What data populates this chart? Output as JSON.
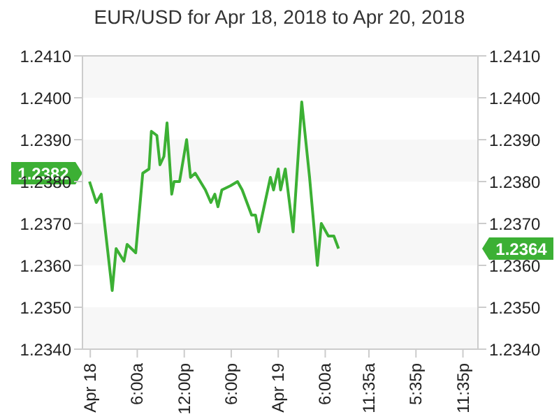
{
  "chart_data": {
    "type": "line",
    "title": "EUR/USD for Apr 18, 2018 to Apr 20, 2018",
    "x": [
      "2018-04-17T23:54",
      "2018-04-18T00:46",
      "2018-04-18T01:24",
      "2018-04-18T02:48",
      "2018-04-18T03:18",
      "2018-04-18T04:18",
      "2018-04-18T04:42",
      "2018-04-18T05:48",
      "2018-04-18T06:42",
      "2018-04-18T07:30",
      "2018-04-18T07:48",
      "2018-04-18T08:30",
      "2018-04-18T08:54",
      "2018-04-18T09:24",
      "2018-04-18T09:48",
      "2018-04-18T10:24",
      "2018-04-18T10:42",
      "2018-04-18T11:24",
      "2018-04-18T12:18",
      "2018-04-18T12:48",
      "2018-04-18T13:24",
      "2018-04-18T14:42",
      "2018-04-18T15:24",
      "2018-04-18T15:54",
      "2018-04-18T16:18",
      "2018-04-18T16:48",
      "2018-04-18T17:54",
      "2018-04-18T18:48",
      "2018-04-18T19:24",
      "2018-04-18T20:36",
      "2018-04-18T21:06",
      "2018-04-18T21:30",
      "2018-04-18T23:00",
      "2018-04-18T23:24",
      "2018-04-19T00:00",
      "2018-04-19T00:18",
      "2018-04-19T00:54",
      "2018-04-19T01:54",
      "2018-04-19T03:00",
      "2018-04-19T04:00",
      "2018-04-19T05:00",
      "2018-04-19T05:30",
      "2018-04-19T06:24",
      "2018-04-19T07:06",
      "2018-04-19T07:42"
    ],
    "series": [
      {
        "color": "#3cb034",
        "values": [
          1.238,
          1.2375,
          1.2377,
          1.2354,
          1.2364,
          1.2361,
          1.2365,
          1.2363,
          1.2382,
          1.2383,
          1.2392,
          1.2391,
          1.2384,
          1.2386,
          1.2394,
          1.2377,
          1.238,
          1.238,
          1.239,
          1.2381,
          1.2382,
          1.2378,
          1.2375,
          1.2377,
          1.2374,
          1.2378,
          1.2379,
          1.238,
          1.2378,
          1.2372,
          1.2372,
          1.2368,
          1.2381,
          1.2378,
          1.2383,
          1.2378,
          1.2383,
          1.2368,
          1.2399,
          1.2381,
          1.236,
          1.237,
          1.2367,
          1.2367,
          1.2364
        ]
      }
    ],
    "xlim": [
      "2018-04-17T23:00",
      "2018-04-20T01:30"
    ],
    "xticks": [
      {
        "value": "2018-04-18T00:00",
        "label": "Apr 18"
      },
      {
        "value": "2018-04-18T06:00",
        "label": "6:00a"
      },
      {
        "value": "2018-04-18T12:00",
        "label": "12:00p"
      },
      {
        "value": "2018-04-18T18:00",
        "label": "6:00p"
      },
      {
        "value": "2018-04-19T00:00",
        "label": "Apr 19"
      },
      {
        "value": "2018-04-19T06:00",
        "label": "6:00a"
      },
      {
        "value": "2018-04-19T11:35",
        "label": "11:35a"
      },
      {
        "value": "2018-04-19T17:35",
        "label": "5:35p"
      },
      {
        "value": "2018-04-19T23:35",
        "label": "11:35p"
      }
    ],
    "ylim": [
      1.234,
      1.241
    ],
    "yticks": [
      {
        "value": 1.234,
        "label": "1.2340"
      },
      {
        "value": 1.235,
        "label": "1.2350"
      },
      {
        "value": 1.236,
        "label": "1.2360"
      },
      {
        "value": 1.237,
        "label": "1.2370"
      },
      {
        "value": 1.238,
        "label": "1.2380"
      },
      {
        "value": 1.239,
        "label": "1.2390"
      },
      {
        "value": 1.24,
        "label": "1.2400"
      },
      {
        "value": 1.241,
        "label": "1.2410"
      }
    ],
    "y2lim": [
      1.234,
      1.241
    ],
    "y2ticks": [
      {
        "value": 1.234,
        "label": "1.2340"
      },
      {
        "value": 1.235,
        "label": "1.2350"
      },
      {
        "value": 1.236,
        "label": "1.2360"
      },
      {
        "value": 1.237,
        "label": "1.2370"
      },
      {
        "value": 1.238,
        "label": "1.2380"
      },
      {
        "value": 1.239,
        "label": "1.2390"
      },
      {
        "value": 1.24,
        "label": "1.2400"
      },
      {
        "value": 1.241,
        "label": "1.2410"
      }
    ],
    "annotations": [
      "1.2382",
      "1.2364"
    ],
    "legend": false,
    "marker": "none",
    "line_style": "solid"
  }
}
